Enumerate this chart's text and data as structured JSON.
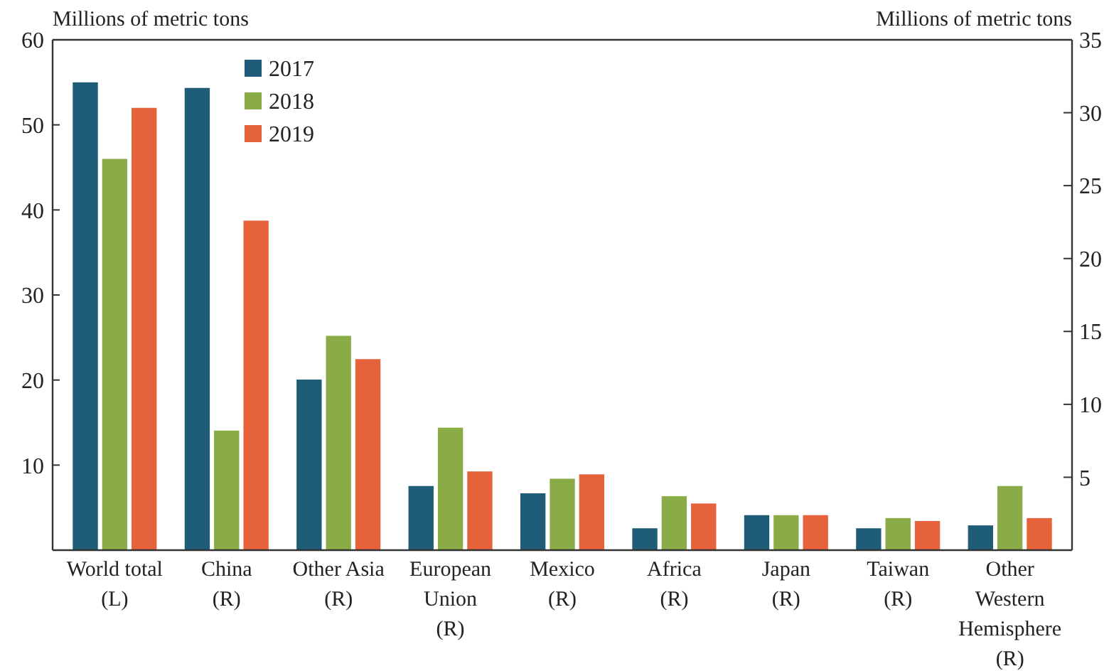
{
  "chart_data": {
    "type": "bar",
    "ylabel": "Millions of metric tons",
    "y2label": "Millions of metric tons",
    "categories": [
      "World total\n(L)",
      "China\n(R)",
      "Other Asia\n(R)",
      "European\nUnion\n(R)",
      "Mexico\n(R)",
      "Africa\n(R)",
      "Japan\n(R)",
      "Taiwan\n(R)",
      "Other\nWestern\nHemisphere\n(R)"
    ],
    "series": [
      {
        "name": "2017",
        "color": "#1f5c78",
        "axis": "y",
        "values": [
          55,
          null,
          null,
          null,
          null,
          null,
          null,
          null,
          null
        ]
      },
      {
        "name": "2018",
        "color": "#8aac46",
        "axis": "y",
        "values": [
          46,
          null,
          null,
          null,
          null,
          null,
          null,
          null,
          null
        ]
      },
      {
        "name": "2019",
        "color": "#e5623b",
        "axis": "y",
        "values": [
          52,
          null,
          null,
          null,
          null,
          null,
          null,
          null,
          null
        ]
      },
      {
        "color": "#1f5c78",
        "axis": "y2",
        "values": [
          null,
          31.7,
          11.7,
          4.4,
          3.9,
          1.5,
          2.4,
          1.5,
          1.7
        ]
      },
      {
        "color": "#8aac46",
        "axis": "y2",
        "values": [
          null,
          8.2,
          14.7,
          8.4,
          4.9,
          3.7,
          2.4,
          2.2,
          4.4
        ]
      },
      {
        "color": "#e5623b",
        "axis": "y2",
        "values": [
          null,
          22.6,
          13.1,
          5.4,
          5.2,
          3.2,
          2.4,
          2.0,
          2.2
        ]
      }
    ],
    "ylim": [
      0,
      60
    ],
    "yticks": [
      {
        "value": 0,
        "label": null
      },
      10,
      20,
      30,
      40,
      50,
      60
    ],
    "y2lim": [
      0,
      35
    ],
    "y2ticks": [
      {
        "value": 0,
        "label": null
      },
      5,
      10,
      15,
      20,
      25,
      30,
      35
    ],
    "legend": "top left"
  }
}
